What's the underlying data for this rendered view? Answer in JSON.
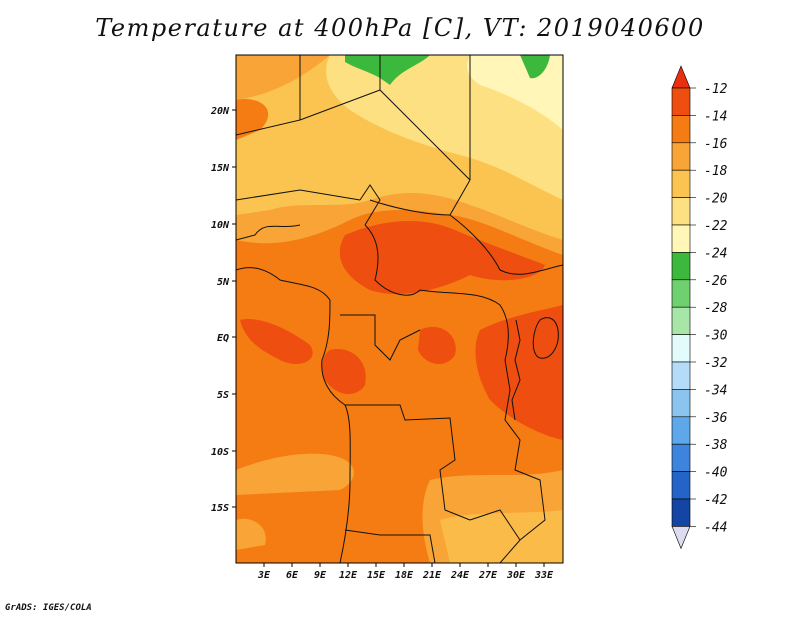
{
  "title": "Temperature at 400hPa [C], VT: 2019040600",
  "credit": "GrADS: IGES/COLA",
  "lat_labels": [
    "20N",
    "15N",
    "10N",
    "5N",
    "EQ",
    "5S",
    "10S",
    "15S"
  ],
  "lon_labels": [
    "3E",
    "6E",
    "9E",
    "12E",
    "15E",
    "18E",
    "21E",
    "24E",
    "27E",
    "30E",
    "33E"
  ],
  "colorbar": {
    "labels": [
      "-12",
      "-14",
      "-16",
      "-18",
      "-20",
      "-22",
      "-24",
      "-26",
      "-28",
      "-30",
      "-32",
      "-34",
      "-36",
      "-38",
      "-40",
      "-42",
      "-44"
    ],
    "colors": [
      "#ee4e0f",
      "#f47c13",
      "#f8a436",
      "#fbc450",
      "#fde081",
      "#fff6b8",
      "#3cb83c",
      "#6fd06f",
      "#a8e6a8",
      "#e3fbfd",
      "#b4dcf8",
      "#8cc4f0",
      "#5ea8ea",
      "#3c84dc",
      "#2464c8",
      "#1444a4",
      "#0c1470"
    ],
    "top_arrow_color": "#e8300e",
    "bottom_arrow_color": "#dcdcf0"
  }
}
